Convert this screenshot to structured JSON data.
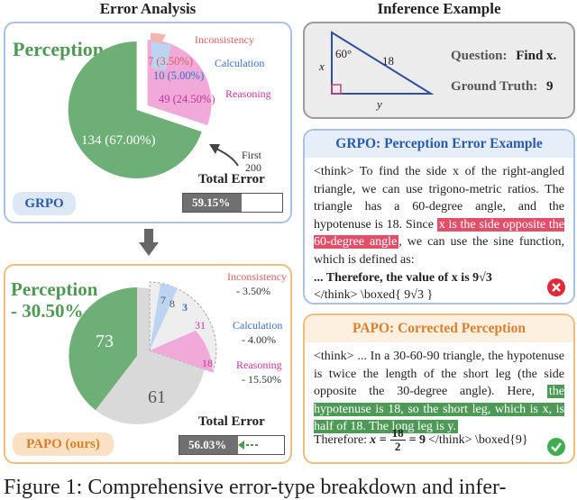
{
  "headings": {
    "left": "Error Analysis",
    "right": "Inference Example"
  },
  "grpo_panel": {
    "perception_label": "Perception",
    "slices": [
      {
        "label": "Inconsistency",
        "value": "7 (3.50%)"
      },
      {
        "label": "Calculation",
        "value": "10 (5.00%)"
      },
      {
        "label": "Reasoning",
        "value": "49 (24.50%)"
      },
      {
        "label": "Perception",
        "value": "134 (67.00%)"
      }
    ],
    "arrow_note": [
      "First",
      "200"
    ],
    "method_badge": "GRPO",
    "total_error_label": "Total Error",
    "total_error_value": "59.15%",
    "total_error_fraction": 0.5915
  },
  "papo_panel": {
    "perception_label": "Perception",
    "perception_change": "- 30.50%",
    "perception_count": "73",
    "gray_count": "61",
    "small_nums": [
      "7",
      "8",
      "3",
      "31",
      "18"
    ],
    "changes": [
      {
        "label": "Inconsistency",
        "delta": "- 3.50%"
      },
      {
        "label": "Calculation",
        "delta": "- 4.00%"
      },
      {
        "label": "Reasoning",
        "delta": "- 15.50%"
      }
    ],
    "method_badge": "PAPO (ours)",
    "total_error_label": "Total Error",
    "total_error_value": "56.03%",
    "total_error_fraction": 0.5603
  },
  "inference": {
    "angle": "60°",
    "hyp": "18",
    "side_x": "x",
    "side_y": "y",
    "question_label": "Question:",
    "question": "Find x.",
    "gt_label": "Ground Truth:",
    "gt": "9"
  },
  "grpo_example": {
    "title": "GRPO: Perception Error Example",
    "before": "<think> To find the side x of the right-angled triangle, we can use trigono-metric ratios. The triangle has a 60-degree angle, and the hypotenuse is 18. Since ",
    "highlight": "x is the side opposite the 60-degree angle",
    "after": ", we can use the sine function, which is defined as:",
    "line2_prefix": "... Therefore, the value of x is ",
    "line2_math": "9√3",
    "line3": "</think> \\boxed{ 9√3 }"
  },
  "papo_example": {
    "title": "PAPO: Corrected Perception",
    "before": "<think> ... In a 30-60-90 triangle, the hypotenuse is twice the length of the short leg (the side opposite the 30-degree angle). Here, ",
    "highlight": "the hypotenuse is 18, so the short leg, which is x, is half of 18. The long leg is y.",
    "therefore": "Therefore:",
    "eq_lhs": "x =",
    "frac_num": "18",
    "frac_den": "2",
    "eq_rhs": "= 9",
    "tail": "</think> \\boxed{9}"
  },
  "caption": "Figure 1: Comprehensive error-type breakdown and infer-"
}
